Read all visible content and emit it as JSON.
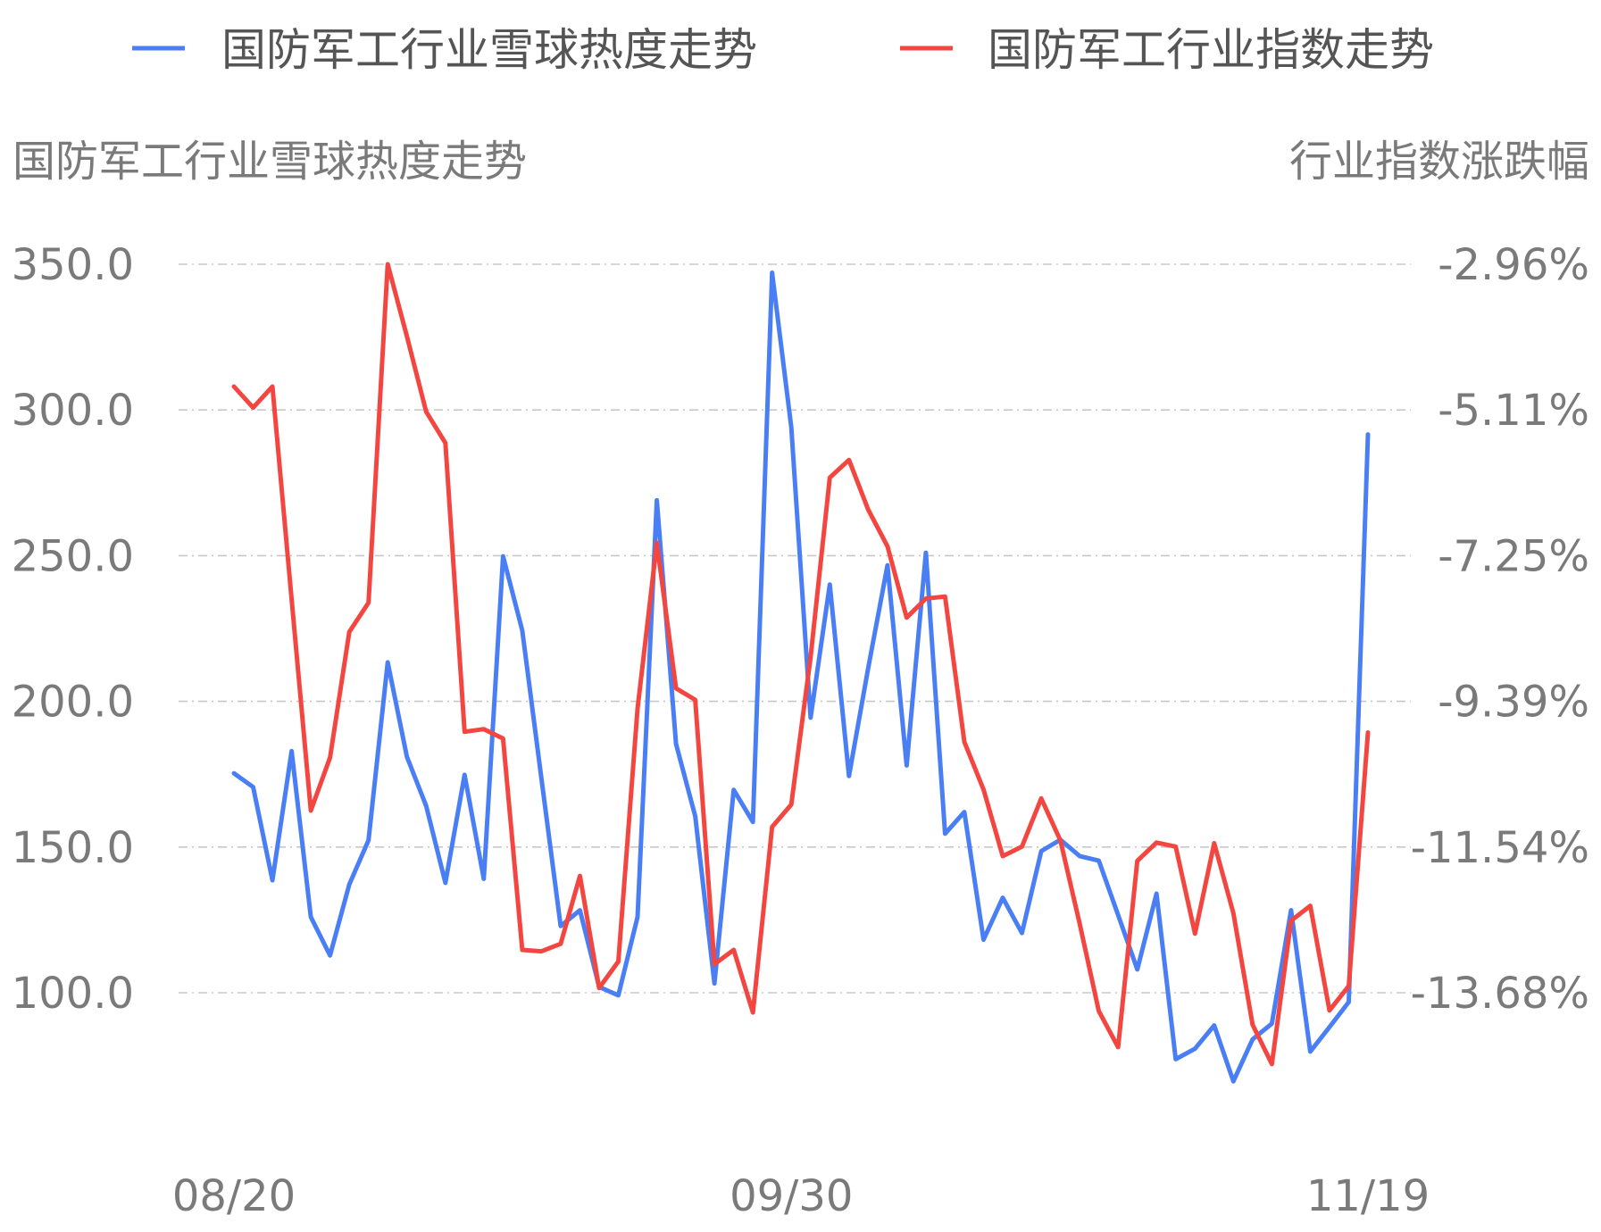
{
  "chart_data": {
    "type": "line",
    "legend": {
      "position": "top",
      "entries": [
        {
          "name": "国防军工行业雪球热度走势",
          "color": "#4a7ef5"
        },
        {
          "name": "国防军工行业指数走势",
          "color": "#f44640"
        }
      ]
    },
    "left_axis_title": "国防军工行业雪球热度走势",
    "right_axis_title": "行业指数涨跌幅",
    "left_ticks": [
      "350.0",
      "300.0",
      "250.0",
      "200.0",
      "150.0",
      "100.0"
    ],
    "right_ticks": [
      "-2.96%",
      "-5.11%",
      "-7.25%",
      "-9.39%",
      "-11.54%",
      "-13.68%"
    ],
    "x_ticks": [
      "08/20",
      "09/30",
      "11/19"
    ],
    "x_tick_index": [
      0,
      29,
      59
    ],
    "left_range": [
      100,
      350
    ],
    "right_range": [
      -13.68,
      -2.96
    ],
    "grid": true,
    "series": [
      {
        "name": "国防军工行业雪球热度走势",
        "axis": "left",
        "color": "#4a7ef5",
        "values": [
          175.3,
          170.6,
          138.6,
          182.9,
          126.0,
          112.8,
          137.2,
          152.3,
          213.4,
          181.0,
          164.1,
          137.7,
          174.8,
          139.1,
          249.8,
          224.3,
          173.4,
          122.9,
          128.3,
          102.0,
          99.1,
          126.0,
          269.0,
          185.4,
          160.6,
          103.2,
          169.6,
          158.6,
          347.1,
          294.0,
          194.4,
          240.1,
          174.4,
          211.4,
          246.7,
          178.0,
          251.0,
          154.6,
          162.0,
          118.2,
          132.6,
          120.5,
          148.6,
          152.5,
          146.9,
          145.3,
          126.7,
          108.0,
          134.0,
          77.2,
          80.8,
          88.8,
          69.6,
          84.0,
          89.4,
          128.3,
          79.8,
          88.2,
          96.8,
          291.6
        ]
      },
      {
        "name": "国防军工行业指数走势",
        "axis": "right",
        "color": "#f44640",
        "values": [
          -4.76,
          -5.07,
          -4.76,
          -7.89,
          -11.0,
          -10.22,
          -8.37,
          -7.94,
          -2.96,
          -4.02,
          -5.13,
          -5.59,
          -9.84,
          -9.8,
          -9.94,
          -13.05,
          -13.07,
          -12.96,
          -11.96,
          -13.61,
          -13.22,
          -9.5,
          -7.06,
          -9.2,
          -9.37,
          -13.26,
          -13.05,
          -13.97,
          -11.24,
          -10.91,
          -8.74,
          -6.1,
          -5.84,
          -6.57,
          -7.11,
          -8.16,
          -7.88,
          -7.85,
          -9.99,
          -10.69,
          -11.67,
          -11.53,
          -10.82,
          -11.44,
          -12.66,
          -13.95,
          -14.48,
          -11.74,
          -11.47,
          -11.53,
          -12.81,
          -11.48,
          -12.51,
          -14.15,
          -14.73,
          -12.62,
          -12.4,
          -13.94,
          -13.58,
          -9.85
        ]
      }
    ]
  }
}
